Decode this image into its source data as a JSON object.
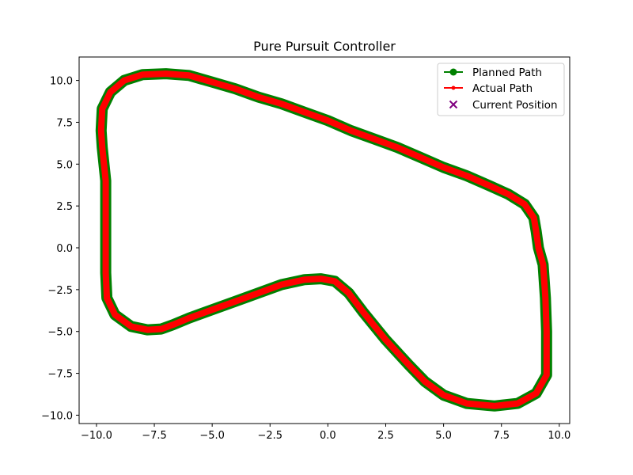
{
  "chart_data": {
    "type": "line",
    "title": "Pure Pursuit Controller",
    "xlabel": "",
    "ylabel": "",
    "xlim": [
      -10.75,
      10.45
    ],
    "ylim": [
      -10.5,
      11.4
    ],
    "xticks": [
      -10.0,
      -7.5,
      -5.0,
      -2.5,
      0.0,
      2.5,
      5.0,
      7.5,
      10.0
    ],
    "yticks": [
      -10.0,
      -7.5,
      -5.0,
      -2.5,
      0.0,
      2.5,
      5.0,
      7.5,
      10.0
    ],
    "xtick_labels": [
      "−10.0",
      "−7.5",
      "−5.0",
      "−2.5",
      "0.0",
      "2.5",
      "5.0",
      "7.5",
      "10.0"
    ],
    "ytick_labels": [
      "−10.0",
      "−7.5",
      "−5.0",
      "−2.5",
      "0.0",
      "2.5",
      "5.0",
      "7.5",
      "10.0"
    ],
    "grid": false,
    "legend_position": "top-right",
    "series": [
      {
        "name": "Planned Path",
        "color": "#008000",
        "marker": "circle",
        "points": [
          [
            9.1,
            0.0
          ],
          [
            9.3,
            -1.0
          ],
          [
            9.4,
            -3.0
          ],
          [
            9.45,
            -5.0
          ],
          [
            9.45,
            -6.5
          ],
          [
            9.45,
            -7.6
          ],
          [
            9.0,
            -8.7
          ],
          [
            8.2,
            -9.3
          ],
          [
            7.2,
            -9.45
          ],
          [
            6.0,
            -9.3
          ],
          [
            5.0,
            -8.8
          ],
          [
            4.2,
            -8.0
          ],
          [
            3.5,
            -7.0
          ],
          [
            2.5,
            -5.5
          ],
          [
            1.5,
            -3.8
          ],
          [
            0.9,
            -2.7
          ],
          [
            0.3,
            -2.0
          ],
          [
            -0.3,
            -1.85
          ],
          [
            -1.0,
            -1.9
          ],
          [
            -2.0,
            -2.2
          ],
          [
            -3.0,
            -2.7
          ],
          [
            -4.0,
            -3.2
          ],
          [
            -5.0,
            -3.7
          ],
          [
            -6.0,
            -4.2
          ],
          [
            -6.7,
            -4.6
          ],
          [
            -7.2,
            -4.85
          ],
          [
            -7.8,
            -4.9
          ],
          [
            -8.5,
            -4.7
          ],
          [
            -9.2,
            -4.0
          ],
          [
            -9.55,
            -3.0
          ],
          [
            -9.6,
            -1.5
          ],
          [
            -9.6,
            0.0
          ],
          [
            -9.6,
            2.0
          ],
          [
            -9.6,
            4.0
          ],
          [
            -9.75,
            6.0
          ],
          [
            -9.8,
            7.0
          ],
          [
            -9.75,
            8.3
          ],
          [
            -9.4,
            9.3
          ],
          [
            -8.8,
            10.0
          ],
          [
            -8.0,
            10.35
          ],
          [
            -7.0,
            10.4
          ],
          [
            -6.0,
            10.3
          ],
          [
            -5.0,
            9.9
          ],
          [
            -4.0,
            9.5
          ],
          [
            -3.0,
            9.0
          ],
          [
            -2.0,
            8.6
          ],
          [
            -1.0,
            8.1
          ],
          [
            0.0,
            7.6
          ],
          [
            1.0,
            7.0
          ],
          [
            2.0,
            6.5
          ],
          [
            3.0,
            6.0
          ],
          [
            4.0,
            5.4
          ],
          [
            5.0,
            4.8
          ],
          [
            6.0,
            4.3
          ],
          [
            7.0,
            3.7
          ],
          [
            7.8,
            3.2
          ],
          [
            8.5,
            2.6
          ],
          [
            8.9,
            1.8
          ],
          [
            9.0,
            1.0
          ],
          [
            9.1,
            0.0
          ]
        ]
      },
      {
        "name": "Actual Path",
        "color": "#ff0000",
        "marker": "point",
        "points": [
          [
            9.1,
            0.0
          ],
          [
            9.3,
            -1.0
          ],
          [
            9.4,
            -3.0
          ],
          [
            9.45,
            -5.0
          ],
          [
            9.45,
            -6.5
          ],
          [
            9.45,
            -7.6
          ],
          [
            9.0,
            -8.7
          ],
          [
            8.2,
            -9.3
          ],
          [
            7.2,
            -9.45
          ],
          [
            6.0,
            -9.3
          ],
          [
            5.0,
            -8.8
          ],
          [
            4.2,
            -8.0
          ],
          [
            3.5,
            -7.0
          ],
          [
            2.5,
            -5.5
          ],
          [
            1.5,
            -3.8
          ],
          [
            0.9,
            -2.7
          ],
          [
            0.3,
            -2.0
          ],
          [
            -0.3,
            -1.85
          ],
          [
            -1.0,
            -1.9
          ],
          [
            -2.0,
            -2.2
          ],
          [
            -3.0,
            -2.7
          ],
          [
            -4.0,
            -3.2
          ],
          [
            -5.0,
            -3.7
          ],
          [
            -6.0,
            -4.2
          ],
          [
            -6.7,
            -4.6
          ],
          [
            -7.2,
            -4.85
          ],
          [
            -7.8,
            -4.9
          ],
          [
            -8.5,
            -4.7
          ],
          [
            -9.2,
            -4.0
          ],
          [
            -9.55,
            -3.0
          ],
          [
            -9.6,
            -1.5
          ],
          [
            -9.6,
            0.0
          ],
          [
            -9.6,
            2.0
          ],
          [
            -9.6,
            4.0
          ],
          [
            -9.75,
            6.0
          ],
          [
            -9.8,
            7.0
          ],
          [
            -9.75,
            8.3
          ],
          [
            -9.4,
            9.3
          ],
          [
            -8.8,
            10.0
          ],
          [
            -8.0,
            10.35
          ],
          [
            -7.0,
            10.4
          ],
          [
            -6.0,
            10.3
          ],
          [
            -5.0,
            9.9
          ],
          [
            -4.0,
            9.5
          ],
          [
            -3.0,
            9.0
          ],
          [
            -2.0,
            8.6
          ],
          [
            -1.0,
            8.1
          ],
          [
            0.0,
            7.6
          ],
          [
            1.0,
            7.0
          ],
          [
            2.0,
            6.5
          ],
          [
            3.0,
            6.0
          ],
          [
            4.0,
            5.4
          ],
          [
            5.0,
            4.8
          ],
          [
            6.0,
            4.3
          ],
          [
            7.0,
            3.7
          ],
          [
            7.8,
            3.2
          ],
          [
            8.5,
            2.6
          ],
          [
            8.9,
            1.8
          ],
          [
            9.0,
            1.0
          ],
          [
            9.1,
            0.0
          ]
        ]
      },
      {
        "name": "Current Position",
        "color": "#800080",
        "marker": "x",
        "points": []
      }
    ]
  }
}
